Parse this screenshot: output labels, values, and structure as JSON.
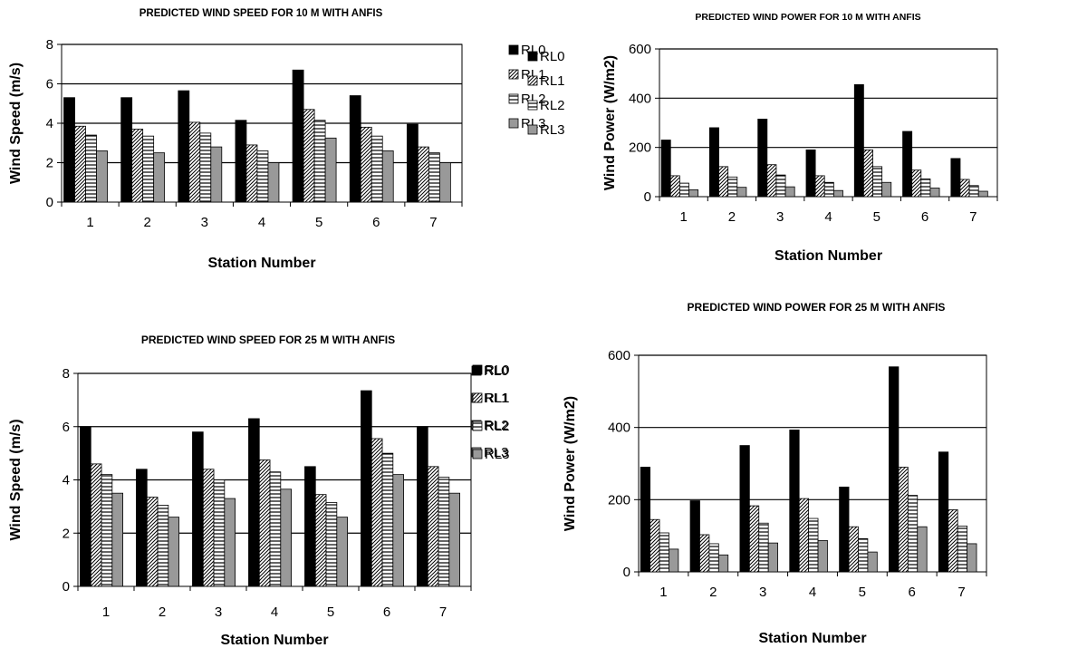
{
  "legend_series": [
    "RL0",
    "RL1",
    "RL2",
    "RL3"
  ],
  "chart_data": [
    {
      "type": "bar",
      "title": "PREDICTED WIND SPEED FOR 10 M WITH ANFIS",
      "xlabel": "Station Number",
      "ylabel": "Wind Speed (m/s)",
      "ylim": [
        0,
        8
      ],
      "yticks": [
        0,
        2,
        4,
        6,
        8
      ],
      "categories": [
        "1",
        "2",
        "3",
        "4",
        "5",
        "6",
        "7"
      ],
      "series": [
        {
          "name": "RL0",
          "values": [
            5.3,
            5.3,
            5.65,
            4.15,
            6.7,
            5.4,
            3.95
          ]
        },
        {
          "name": "RL1",
          "values": [
            3.85,
            3.7,
            4.05,
            2.9,
            4.7,
            3.8,
            2.8
          ]
        },
        {
          "name": "RL2",
          "values": [
            3.4,
            3.35,
            3.5,
            2.6,
            4.15,
            3.35,
            2.5
          ]
        },
        {
          "name": "RL3",
          "values": [
            2.6,
            2.5,
            2.8,
            2.0,
            3.25,
            2.6,
            2.0
          ]
        }
      ],
      "grid": true,
      "legend": "right"
    },
    {
      "type": "bar",
      "title": "PREDICTED WIND POWER FOR 10 M WITH ANFIS",
      "xlabel": "Station Number",
      "ylabel": "Wind Power (W/m2)",
      "ylim": [
        0,
        600
      ],
      "yticks": [
        0,
        200,
        400,
        600
      ],
      "categories": [
        "1",
        "2",
        "3",
        "4",
        "5",
        "6",
        "7"
      ],
      "series": [
        {
          "name": "RL0",
          "values": [
            230,
            280,
            315,
            190,
            455,
            265,
            155
          ]
        },
        {
          "name": "RL1",
          "values": [
            85,
            122,
            130,
            85,
            190,
            108,
            70
          ]
        },
        {
          "name": "RL2",
          "values": [
            55,
            80,
            88,
            58,
            122,
            72,
            45
          ]
        },
        {
          "name": "RL3",
          "values": [
            28,
            38,
            40,
            25,
            58,
            35,
            22
          ]
        }
      ],
      "grid": true,
      "legend": "right"
    },
    {
      "type": "bar",
      "title": "PREDICTED WIND SPEED FOR 25 M WITH ANFIS",
      "xlabel": "Station Number",
      "ylabel": "Wind Speed (m/s)",
      "ylim": [
        0,
        8
      ],
      "yticks": [
        0,
        2,
        4,
        6,
        8
      ],
      "categories": [
        "1",
        "2",
        "3",
        "4",
        "5",
        "6",
        "7"
      ],
      "series": [
        {
          "name": "RL0",
          "values": [
            6.0,
            4.4,
            5.8,
            6.3,
            4.5,
            7.35,
            6.0
          ]
        },
        {
          "name": "RL1",
          "values": [
            4.6,
            3.35,
            4.4,
            4.75,
            3.45,
            5.55,
            4.5
          ]
        },
        {
          "name": "RL2",
          "values": [
            4.2,
            3.05,
            4.0,
            4.3,
            3.15,
            5.0,
            4.1
          ]
        },
        {
          "name": "RL3",
          "values": [
            3.5,
            2.6,
            3.3,
            3.65,
            2.6,
            4.2,
            3.5
          ]
        }
      ],
      "grid": true,
      "legend": "right"
    },
    {
      "type": "bar",
      "title": "PREDICTED WIND POWER FOR 25 M WITH ANFIS",
      "xlabel": "Station Number",
      "ylabel": "Wind Power (W/m2)",
      "ylim": [
        0,
        600
      ],
      "yticks": [
        0,
        200,
        400,
        600
      ],
      "categories": [
        "1",
        "2",
        "3",
        "4",
        "5",
        "6",
        "7"
      ],
      "series": [
        {
          "name": "RL0",
          "values": [
            290,
            197,
            350,
            393,
            235,
            568,
            332
          ]
        },
        {
          "name": "RL1",
          "values": [
            145,
            103,
            183,
            203,
            125,
            290,
            172
          ]
        },
        {
          "name": "RL2",
          "values": [
            108,
            78,
            135,
            148,
            92,
            212,
            127
          ]
        },
        {
          "name": "RL3",
          "values": [
            63,
            47,
            80,
            87,
            55,
            125,
            78
          ]
        }
      ],
      "grid": true,
      "legend": "right"
    }
  ]
}
